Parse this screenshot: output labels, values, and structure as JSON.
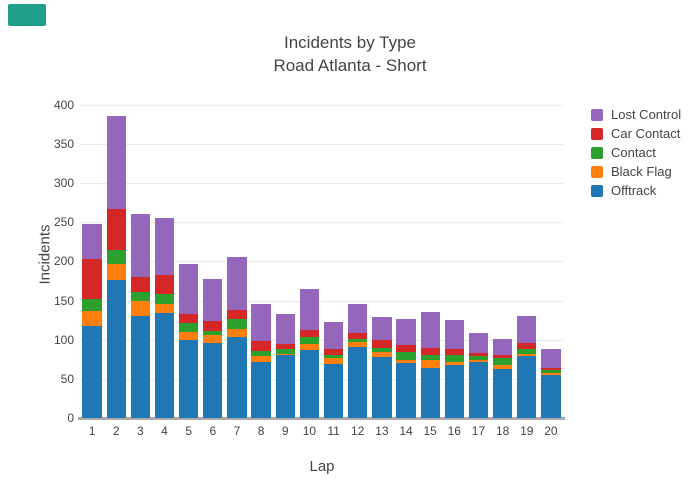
{
  "badge": {
    "color": "#1f9e89"
  },
  "title": {
    "line1": "Incidents by Type",
    "line2": "Road Atlanta - Short"
  },
  "chart_data": {
    "type": "bar",
    "stacked": true,
    "title": "Incidents by Type - Road Atlanta - Short",
    "xlabel": "Lap",
    "ylabel": "Incidents",
    "categories": [
      "1",
      "2",
      "3",
      "4",
      "5",
      "6",
      "7",
      "8",
      "9",
      "10",
      "11",
      "12",
      "13",
      "14",
      "15",
      "16",
      "17",
      "18",
      "19",
      "20"
    ],
    "series": [
      {
        "name": "Offtrack",
        "color": "#1f77b4",
        "values": [
          118,
          176,
          130,
          134,
          100,
          96,
          103,
          72,
          80,
          87,
          69,
          91,
          78,
          70,
          64,
          68,
          71,
          63,
          79,
          55
        ]
      },
      {
        "name": "Black Flag",
        "color": "#ff7f0e",
        "values": [
          18,
          20,
          19,
          11,
          10,
          10,
          11,
          7,
          2,
          8,
          8,
          6,
          6,
          4,
          10,
          3,
          3,
          5,
          3,
          3
        ]
      },
      {
        "name": "Contact",
        "color": "#2ca02c",
        "values": [
          16,
          19,
          12,
          13,
          11,
          5,
          13,
          7,
          6,
          9,
          4,
          4,
          6,
          10,
          6,
          10,
          5,
          8,
          6,
          3
        ]
      },
      {
        "name": "Car Contact",
        "color": "#d62728",
        "values": [
          51,
          52,
          19,
          24,
          12,
          13,
          11,
          12,
          6,
          8,
          7,
          7,
          10,
          9,
          10,
          7,
          4,
          5,
          8,
          3
        ]
      },
      {
        "name": "Lost Control",
        "color": "#9467bd",
        "values": [
          45,
          119,
          81,
          74,
          64,
          53,
          68,
          47,
          39,
          53,
          35,
          38,
          29,
          33,
          46,
          37,
          26,
          20,
          34,
          24
        ]
      }
    ],
    "totals": [
      248,
      386,
      261,
      256,
      197,
      177,
      206,
      145,
      133,
      165,
      123,
      146,
      129,
      126,
      136,
      125,
      109,
      101,
      130,
      88
    ],
    "yticks": [
      0,
      50,
      100,
      150,
      200,
      250,
      300,
      350,
      400
    ],
    "ylim": [
      0,
      410
    ],
    "grid": true,
    "legend_position": "right",
    "legend_order_top_to_bottom": [
      "Lost Control",
      "Car Contact",
      "Contact",
      "Black Flag",
      "Offtrack"
    ],
    "zeroline_color": "#ababab",
    "gridline_color": "#ebebeb"
  }
}
